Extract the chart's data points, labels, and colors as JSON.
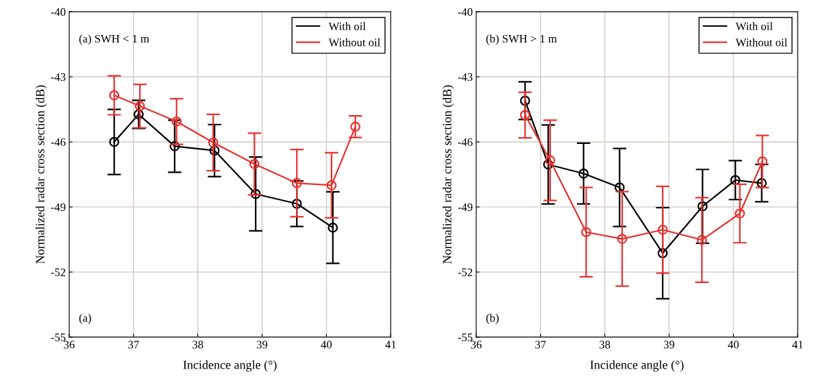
{
  "chart_data": [
    {
      "type": "line",
      "xlabel": "Incidence angle (°)",
      "ylabel": "Normalized radar cross section (dB)",
      "xlim": [
        36,
        41
      ],
      "xticks": [
        36,
        37,
        38,
        39,
        40,
        41
      ],
      "ylim": [
        -55,
        -40
      ],
      "yticks": [
        -55,
        -52,
        -49,
        -46,
        -43,
        -40
      ],
      "grid": true,
      "legend": "top right",
      "marker": "circle",
      "line_style": "solid",
      "annotations": [
        "(a) SWH < 1 m",
        "(a)"
      ],
      "series": [
        {
          "name": "With oil",
          "color": "#000000",
          "x": [
            36.7,
            37.08,
            37.64,
            38.26,
            38.9,
            39.54,
            40.1
          ],
          "values": [
            -46.0,
            -44.73,
            -46.2,
            -46.4,
            -48.4,
            -48.85,
            -49.95
          ],
          "errors": [
            1.5,
            0.65,
            1.2,
            1.2,
            1.7,
            1.05,
            1.65
          ]
        },
        {
          "name": "Without oil",
          "color": "#e8312f",
          "x": [
            36.7,
            37.1,
            37.67,
            38.24,
            38.88,
            39.54,
            40.08,
            40.45
          ],
          "values": [
            -43.85,
            -44.35,
            -45.06,
            -46.03,
            -47.02,
            -47.9,
            -48.0,
            -45.3
          ],
          "errors": [
            0.9,
            1.0,
            1.05,
            1.3,
            1.42,
            1.55,
            1.5,
            0.5
          ]
        }
      ]
    },
    {
      "type": "line",
      "xlabel": "Incidence angle (°)",
      "ylabel": "Normalized radar cross section (dB)",
      "xlim": [
        36,
        41
      ],
      "xticks": [
        36,
        37,
        38,
        39,
        40,
        41
      ],
      "ylim": [
        -55,
        -40
      ],
      "yticks": [
        -55,
        -52,
        -49,
        -46,
        -43,
        -40
      ],
      "grid": true,
      "legend": "top right",
      "marker": "circle",
      "line_style": "solid",
      "annotations": [
        "(b) SWH > 1 m",
        "(b)"
      ],
      "series": [
        {
          "name": "With oil",
          "color": "#000000",
          "x": [
            36.76,
            37.12,
            37.67,
            38.23,
            38.9,
            39.52,
            40.03,
            40.44
          ],
          "values": [
            -44.1,
            -47.04,
            -47.46,
            -48.1,
            -51.13,
            -48.97,
            -47.76,
            -47.9
          ],
          "errors": [
            0.87,
            1.82,
            1.4,
            1.8,
            2.1,
            1.7,
            0.9,
            0.86
          ]
        },
        {
          "name": "Without oil",
          "color": "#e8312f",
          "x": [
            36.76,
            37.15,
            37.71,
            38.27,
            38.9,
            39.51,
            40.1,
            40.45
          ],
          "values": [
            -44.76,
            -46.85,
            -50.16,
            -50.47,
            -50.05,
            -50.52,
            -49.3,
            -46.9
          ],
          "errors": [
            1.05,
            1.85,
            2.06,
            2.18,
            2.0,
            1.95,
            1.35,
            1.2
          ]
        }
      ]
    }
  ]
}
